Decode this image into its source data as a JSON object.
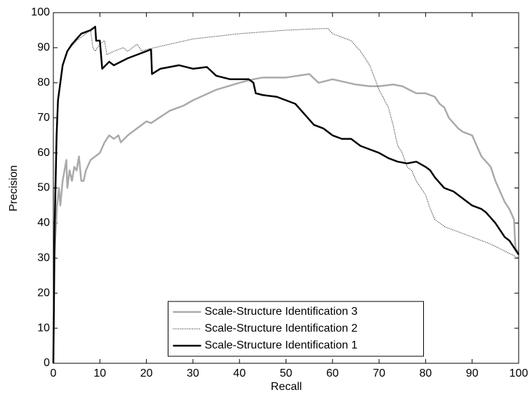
{
  "chart_data": {
    "type": "line",
    "xlabel": "Recall",
    "ylabel": "Precision",
    "xlim": [
      0,
      100
    ],
    "ylim": [
      0,
      100
    ],
    "xticks": [
      0,
      10,
      20,
      30,
      40,
      50,
      60,
      70,
      80,
      90,
      100
    ],
    "yticks": [
      0,
      10,
      20,
      30,
      40,
      50,
      60,
      70,
      80,
      90,
      100
    ],
    "grid": false,
    "legend": "lower center",
    "series": [
      {
        "name": "Scale-Structure Identification 3",
        "color": "#aaaaaa",
        "line_width": 2.5,
        "line_style": "solid",
        "x": [
          0,
          0.2,
          0.8,
          1.2,
          1.5,
          2,
          2.8,
          3,
          3.5,
          4,
          4.5,
          5,
          5.5,
          6,
          6.5,
          7,
          8,
          9,
          10,
          11,
          12,
          13,
          14,
          14.5,
          16,
          18,
          20,
          21,
          25,
          28,
          30,
          35,
          40,
          43,
          45,
          50,
          55,
          57,
          60,
          65,
          68,
          70,
          73,
          75,
          78,
          80,
          82,
          83,
          84,
          85,
          87,
          88,
          90,
          91,
          92,
          94,
          95,
          96,
          97,
          98,
          99,
          99.3,
          100
        ],
        "values": [
          0,
          30,
          45,
          50,
          45,
          52,
          58,
          50,
          55,
          52,
          56,
          55,
          59,
          52,
          52,
          55,
          58,
          59,
          60,
          63,
          65,
          64,
          65,
          63,
          65,
          67,
          69,
          68.5,
          72,
          73.5,
          75,
          78,
          80,
          81,
          81.5,
          81.5,
          82.5,
          80,
          81,
          79.5,
          79,
          79,
          79.5,
          79,
          77,
          77,
          76,
          74,
          73,
          70,
          67,
          66,
          65,
          62,
          59,
          56,
          52,
          49,
          46,
          44,
          41,
          33,
          31
        ]
      },
      {
        "name": "Scale-Structure Identification 2",
        "color": "#000000",
        "line_width": 1,
        "line_style": "dotted",
        "x": [
          0,
          0.3,
          1,
          2,
          3,
          5,
          7,
          8,
          8.5,
          9,
          10,
          11,
          11.5,
          13,
          15,
          16,
          18,
          19,
          20,
          25,
          30,
          40,
          50,
          55,
          59,
          60,
          62,
          64,
          66,
          68,
          70,
          72,
          73,
          74,
          75,
          76,
          77,
          78,
          79,
          80,
          81,
          82,
          84,
          86,
          88,
          90,
          94,
          97,
          100
        ],
        "values": [
          0,
          50,
          75,
          85,
          89,
          92,
          94,
          95,
          90,
          89,
          91,
          92,
          88,
          89,
          90,
          89,
          91,
          89,
          89.5,
          91,
          92.5,
          94,
          95,
          95.3,
          95.5,
          94,
          93,
          92,
          89,
          85,
          78,
          73,
          68,
          62,
          60,
          56,
          55,
          52,
          50,
          48,
          44,
          41,
          39,
          38,
          37,
          36,
          34,
          32,
          30
        ]
      },
      {
        "name": "Scale-Structure Identification 1",
        "color": "#000000",
        "line_width": 2.5,
        "line_style": "solid",
        "x": [
          0,
          0.3,
          0.7,
          1,
          2,
          3,
          4,
          6,
          8,
          9,
          9.2,
          10,
          10.5,
          12,
          13,
          16,
          19,
          21,
          21.2,
          23,
          25,
          27,
          30,
          33,
          35,
          38,
          42,
          43,
          43.5,
          45,
          48,
          50,
          52,
          54,
          56,
          58,
          60,
          62,
          64,
          66,
          68,
          70,
          72,
          74,
          76,
          78,
          80,
          81,
          82,
          84,
          86,
          88,
          90,
          92,
          93,
          95,
          96,
          97,
          98,
          99,
          100
        ],
        "values": [
          0,
          40,
          65,
          75,
          85,
          89,
          91,
          94,
          95,
          96,
          92,
          92,
          84,
          86,
          85,
          87,
          88.5,
          89.5,
          82.5,
          84,
          84.5,
          85,
          84,
          84.5,
          82,
          81,
          81,
          80,
          77,
          76.5,
          76,
          75,
          74,
          71,
          68,
          67,
          65,
          64,
          64,
          62,
          61,
          60,
          58.5,
          57.5,
          57,
          57.5,
          56,
          55,
          53,
          50,
          49,
          47,
          45,
          44,
          43,
          40,
          38,
          36,
          35,
          33,
          31
        ]
      }
    ]
  }
}
